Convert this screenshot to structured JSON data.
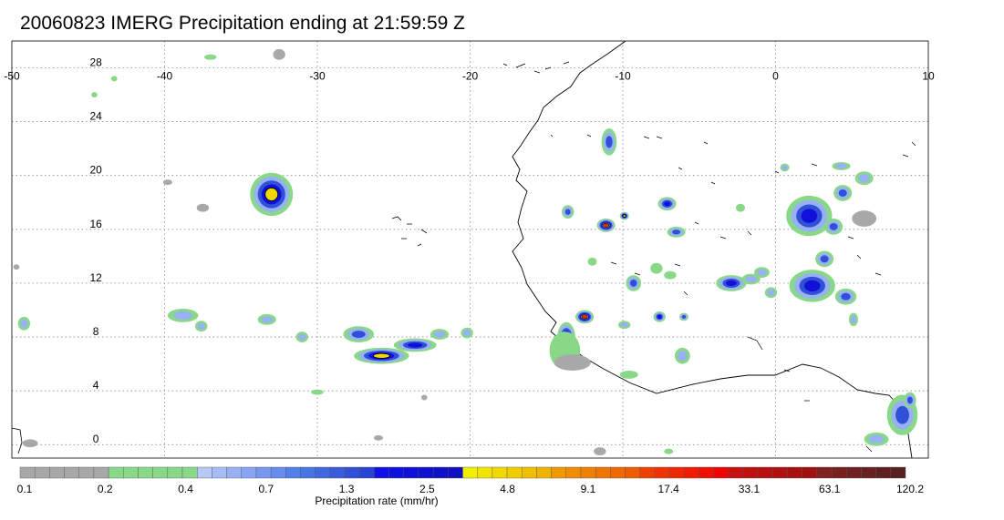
{
  "title": "20060823 IMERG Precipitation ending at 21:59:59 Z",
  "map": {
    "lon_range": [
      -50,
      10
    ],
    "lat_range": [
      -1,
      30
    ],
    "lon_ticks": [
      "-50",
      "-40",
      "-30",
      "-20",
      "-10",
      "0",
      "10"
    ],
    "lat_ticks": [
      "28",
      "24",
      "20",
      "16",
      "12",
      "8",
      "4",
      "0"
    ],
    "lon_tick_values": [
      -50,
      -40,
      -30,
      -20,
      -10,
      0,
      10
    ],
    "lat_tick_values": [
      28,
      24,
      20,
      16,
      12,
      8,
      4,
      0
    ],
    "grid": "dotted"
  },
  "colorbar": {
    "label": "Precipitation rate (mm/hr)",
    "tick_labels": [
      "0.1",
      "0.2",
      "0.4",
      "0.7",
      "1.3",
      "2.5",
      "4.8",
      "9.1",
      "17.4",
      "33.1",
      "63.1",
      "120.2"
    ],
    "colors": [
      "#a8a8a8",
      "#a8a8a8",
      "#a8a8a8",
      "#a8a8a8",
      "#a8a8a8",
      "#a8a8a8",
      "#88d888",
      "#88d888",
      "#88d888",
      "#88d888",
      "#88d888",
      "#88d888",
      "#b8c8f4",
      "#a8bcf4",
      "#98b0f4",
      "#88a4f4",
      "#7898f0",
      "#688cec",
      "#5080e8",
      "#4874e4",
      "#4068e0",
      "#385cdc",
      "#3050d8",
      "#2844d4",
      "#1010e8",
      "#1010e0",
      "#1010d8",
      "#1010d0",
      "#1010c8",
      "#1010c0",
      "#f0f000",
      "#f0e400",
      "#f0d800",
      "#f0cc00",
      "#f0c000",
      "#f0b400",
      "#f09800",
      "#f08c00",
      "#f08000",
      "#f07400",
      "#f06800",
      "#f05c00",
      "#f04000",
      "#f03400",
      "#f02800",
      "#f01c00",
      "#f01000",
      "#f00400",
      "#c81010",
      "#c01010",
      "#b81010",
      "#b01010",
      "#a81010",
      "#a01010",
      "#802020",
      "#782020",
      "#702020",
      "#682020",
      "#602020",
      "#582020"
    ]
  },
  "precip_cells": [
    {
      "lon": -33.0,
      "lat": 18.6,
      "rx": 1.4,
      "ry": 1.6,
      "level": 5
    },
    {
      "lon": -25.8,
      "lat": 6.6,
      "rx": 1.8,
      "ry": 0.6,
      "level": 5
    },
    {
      "lon": -23.6,
      "lat": 7.4,
      "rx": 1.4,
      "ry": 0.5,
      "level": 4
    },
    {
      "lon": -27.3,
      "lat": 8.2,
      "rx": 1.0,
      "ry": 0.6,
      "level": 3
    },
    {
      "lon": -22.0,
      "lat": 8.2,
      "rx": 0.6,
      "ry": 0.4,
      "level": 2
    },
    {
      "lon": -20.2,
      "lat": 8.3,
      "rx": 0.4,
      "ry": 0.4,
      "level": 2
    },
    {
      "lon": -38.8,
      "lat": 9.6,
      "rx": 1.0,
      "ry": 0.5,
      "level": 2
    },
    {
      "lon": -37.6,
      "lat": 8.8,
      "rx": 0.4,
      "ry": 0.4,
      "level": 2
    },
    {
      "lon": -33.3,
      "lat": 9.3,
      "rx": 0.6,
      "ry": 0.4,
      "level": 2
    },
    {
      "lon": -31.0,
      "lat": 8.0,
      "rx": 0.4,
      "ry": 0.4,
      "level": 2
    },
    {
      "lon": -49.2,
      "lat": 9.0,
      "rx": 0.4,
      "ry": 0.5,
      "level": 2
    },
    {
      "lon": -13.7,
      "lat": 7.9,
      "rx": 0.6,
      "ry": 1.2,
      "level": 5
    },
    {
      "lon": -13.8,
      "lat": 7.0,
      "rx": 1.0,
      "ry": 1.4,
      "level": 1
    },
    {
      "lon": -12.5,
      "lat": 9.5,
      "rx": 0.6,
      "ry": 0.5,
      "level": 6
    },
    {
      "lon": -11.1,
      "lat": 16.3,
      "rx": 0.6,
      "ry": 0.5,
      "level": 6
    },
    {
      "lon": -9.9,
      "lat": 17.0,
      "rx": 0.3,
      "ry": 0.3,
      "level": 5
    },
    {
      "lon": -10.9,
      "lat": 22.5,
      "rx": 0.5,
      "ry": 1.0,
      "level": 3
    },
    {
      "lon": -13.6,
      "lat": 17.3,
      "rx": 0.4,
      "ry": 0.5,
      "level": 3
    },
    {
      "lon": -7.1,
      "lat": 17.9,
      "rx": 0.6,
      "ry": 0.5,
      "level": 4
    },
    {
      "lon": -6.5,
      "lat": 15.8,
      "rx": 0.6,
      "ry": 0.4,
      "level": 3
    },
    {
      "lon": -9.3,
      "lat": 12.0,
      "rx": 0.5,
      "ry": 0.6,
      "level": 3
    },
    {
      "lon": -7.6,
      "lat": 9.5,
      "rx": 0.4,
      "ry": 0.4,
      "level": 4
    },
    {
      "lon": -6.0,
      "lat": 9.5,
      "rx": 0.3,
      "ry": 0.3,
      "level": 3
    },
    {
      "lon": -9.9,
      "lat": 8.9,
      "rx": 0.4,
      "ry": 0.3,
      "level": 2
    },
    {
      "lon": -2.9,
      "lat": 12.0,
      "rx": 1.0,
      "ry": 0.6,
      "level": 4
    },
    {
      "lon": -1.6,
      "lat": 12.3,
      "rx": 0.6,
      "ry": 0.4,
      "level": 2
    },
    {
      "lon": -0.3,
      "lat": 11.3,
      "rx": 0.4,
      "ry": 0.4,
      "level": 2
    },
    {
      "lon": 2.2,
      "lat": 17.0,
      "rx": 1.5,
      "ry": 1.5,
      "level": 4
    },
    {
      "lon": 3.8,
      "lat": 16.2,
      "rx": 0.6,
      "ry": 0.6,
      "level": 3
    },
    {
      "lon": 2.4,
      "lat": 11.8,
      "rx": 1.5,
      "ry": 1.2,
      "level": 4
    },
    {
      "lon": 4.6,
      "lat": 11.0,
      "rx": 0.7,
      "ry": 0.6,
      "level": 3
    },
    {
      "lon": 3.2,
      "lat": 13.8,
      "rx": 0.6,
      "ry": 0.6,
      "level": 3
    },
    {
      "lon": 4.4,
      "lat": 18.7,
      "rx": 0.6,
      "ry": 0.6,
      "level": 3
    },
    {
      "lon": 5.8,
      "lat": 19.8,
      "rx": 0.6,
      "ry": 0.5,
      "level": 2
    },
    {
      "lon": 4.3,
      "lat": 20.7,
      "rx": 0.6,
      "ry": 0.3,
      "level": 2
    },
    {
      "lon": 0.6,
      "lat": 20.6,
      "rx": 0.3,
      "ry": 0.3,
      "level": 2
    },
    {
      "lon": 5.1,
      "lat": 9.3,
      "rx": 0.3,
      "ry": 0.5,
      "level": 2
    },
    {
      "lon": -6.1,
      "lat": 6.6,
      "rx": 0.5,
      "ry": 0.6,
      "level": 2
    },
    {
      "lon": 8.3,
      "lat": 2.2,
      "rx": 1.0,
      "ry": 1.5,
      "level": 3
    },
    {
      "lon": 8.8,
      "lat": 3.3,
      "rx": 0.4,
      "ry": 0.6,
      "level": 3
    },
    {
      "lon": 6.6,
      "lat": 0.4,
      "rx": 0.8,
      "ry": 0.5,
      "level": 2
    },
    {
      "lon": -0.9,
      "lat": 12.8,
      "rx": 0.5,
      "ry": 0.4,
      "level": 2
    },
    {
      "lon": -37.0,
      "lat": 28.8,
      "rx": 0.4,
      "ry": 0.2,
      "level": 1
    },
    {
      "lon": -44.6,
      "lat": 26.0,
      "rx": 0.2,
      "ry": 0.2,
      "level": 1
    },
    {
      "lon": -43.3,
      "lat": 27.2,
      "rx": 0.2,
      "ry": 0.2,
      "level": 1
    },
    {
      "lon": -37.5,
      "lat": 17.6,
      "rx": 0.4,
      "ry": 0.3,
      "level": 0
    },
    {
      "lon": -32.5,
      "lat": 29.0,
      "rx": 0.4,
      "ry": 0.4,
      "level": 0
    },
    {
      "lon": -39.8,
      "lat": 19.5,
      "rx": 0.3,
      "ry": 0.2,
      "level": 0
    },
    {
      "lon": -30.0,
      "lat": 3.9,
      "rx": 0.4,
      "ry": 0.2,
      "level": 1
    },
    {
      "lon": -49.7,
      "lat": 13.2,
      "rx": 0.2,
      "ry": 0.2,
      "level": 0
    },
    {
      "lon": -13.3,
      "lat": 6.1,
      "rx": 1.2,
      "ry": 0.6,
      "level": 0
    },
    {
      "lon": -9.6,
      "lat": 5.2,
      "rx": 0.6,
      "ry": 0.3,
      "level": 1
    },
    {
      "lon": -7.8,
      "lat": 13.1,
      "rx": 0.4,
      "ry": 0.4,
      "level": 1
    },
    {
      "lon": -12.0,
      "lat": 13.6,
      "rx": 0.3,
      "ry": 0.3,
      "level": 1
    },
    {
      "lon": -6.9,
      "lat": 12.6,
      "rx": 0.4,
      "ry": 0.3,
      "level": 1
    },
    {
      "lon": -2.3,
      "lat": 17.6,
      "rx": 0.3,
      "ry": 0.3,
      "level": 1
    },
    {
      "lon": -11.5,
      "lat": -0.5,
      "rx": 0.4,
      "ry": 0.3,
      "level": 0
    },
    {
      "lon": -7.0,
      "lat": -0.5,
      "rx": 0.3,
      "ry": 0.2,
      "level": 1
    },
    {
      "lon": -26.0,
      "lat": 0.5,
      "rx": 0.3,
      "ry": 0.2,
      "level": 0
    },
    {
      "lon": -48.8,
      "lat": 0.1,
      "rx": 0.5,
      "ry": 0.3,
      "level": 0
    },
    {
      "lon": 5.8,
      "lat": 16.8,
      "rx": 0.8,
      "ry": 0.6,
      "level": 0
    },
    {
      "lon": -23.0,
      "lat": 3.5,
      "rx": 0.2,
      "ry": 0.2,
      "level": 0
    }
  ],
  "level_colors": [
    "#a8a8a8",
    "#88d888",
    "#98b0f4",
    "#3050d8",
    "#1010d8",
    "#f0d800",
    "#f02800"
  ]
}
